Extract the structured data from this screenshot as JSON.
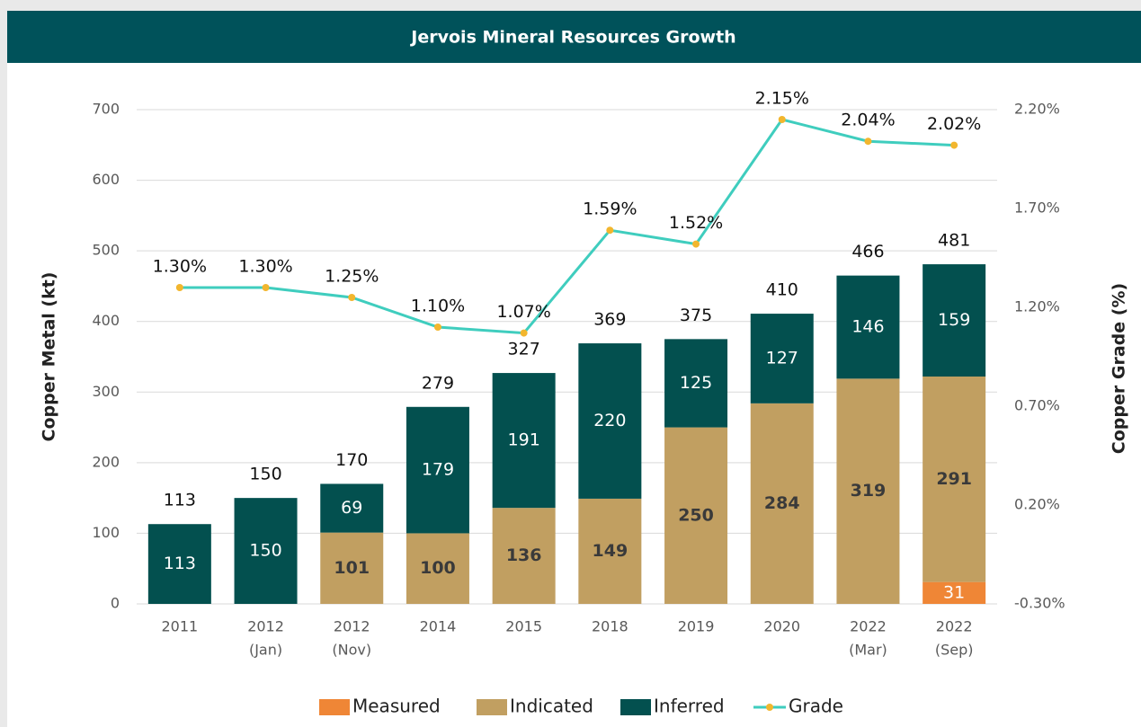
{
  "chart_data": {
    "type": "bar",
    "stacked": true,
    "title": "Jervois Mineral Resources Growth",
    "y_label": "Copper Metal (kt)",
    "y2_label": "Copper Grade (%)",
    "categories": [
      [
        "2011"
      ],
      [
        "2012",
        "(Jan)"
      ],
      [
        "2012",
        "(Nov)"
      ],
      [
        "2014"
      ],
      [
        "2015"
      ],
      [
        "2018"
      ],
      [
        "2019"
      ],
      [
        "2020"
      ],
      [
        "2022",
        "(Mar)"
      ],
      [
        "2022",
        "(Sep)"
      ]
    ],
    "series": [
      {
        "name": "Measured",
        "type": "bar",
        "color": "#ef8636",
        "label_color": "#ffffff",
        "label_bold": false,
        "values": [
          null,
          null,
          null,
          null,
          null,
          null,
          null,
          null,
          null,
          31
        ]
      },
      {
        "name": "Indicated",
        "type": "bar",
        "color": "#c19f61",
        "label_color": "#3a3a3a",
        "label_bold": true,
        "values": [
          null,
          null,
          101,
          100,
          136,
          149,
          250,
          284,
          319,
          291
        ]
      },
      {
        "name": "Inferred",
        "type": "bar",
        "color": "#03504f",
        "label_color": "#ffffff",
        "label_bold": false,
        "values": [
          113,
          150,
          69,
          179,
          191,
          220,
          125,
          127,
          146,
          159
        ]
      },
      {
        "name": "Grade",
        "type": "line",
        "axis": "y2",
        "color": "#3fcdbe",
        "marker_color": "#f2b62e",
        "values": [
          1.3,
          1.3,
          1.25,
          1.1,
          1.07,
          1.59,
          1.52,
          2.15,
          2.04,
          2.02
        ],
        "value_labels": [
          "1.30%",
          "1.30%",
          "1.25%",
          "1.10%",
          "1.07%",
          "1.59%",
          "1.52%",
          "2.15%",
          "2.04%",
          "2.02%"
        ]
      }
    ],
    "totals": [
      113,
      150,
      170,
      279,
      327,
      369,
      375,
      410,
      466,
      481
    ],
    "ylim": [
      0,
      700
    ],
    "yticks": [
      0,
      100,
      200,
      300,
      400,
      500,
      600,
      700
    ],
    "y2lim": [
      -0.3,
      2.2
    ],
    "y2ticks": [
      {
        "value": -0.3,
        "label": "-0.30%"
      },
      {
        "value": 0.2,
        "label": "0.20%"
      },
      {
        "value": 0.7,
        "label": "0.70%"
      },
      {
        "value": 1.2,
        "label": "1.20%"
      },
      {
        "value": 1.7,
        "label": "1.70%"
      },
      {
        "value": 2.2,
        "label": "2.20%"
      }
    ],
    "grid": true,
    "legend": "bottom"
  }
}
